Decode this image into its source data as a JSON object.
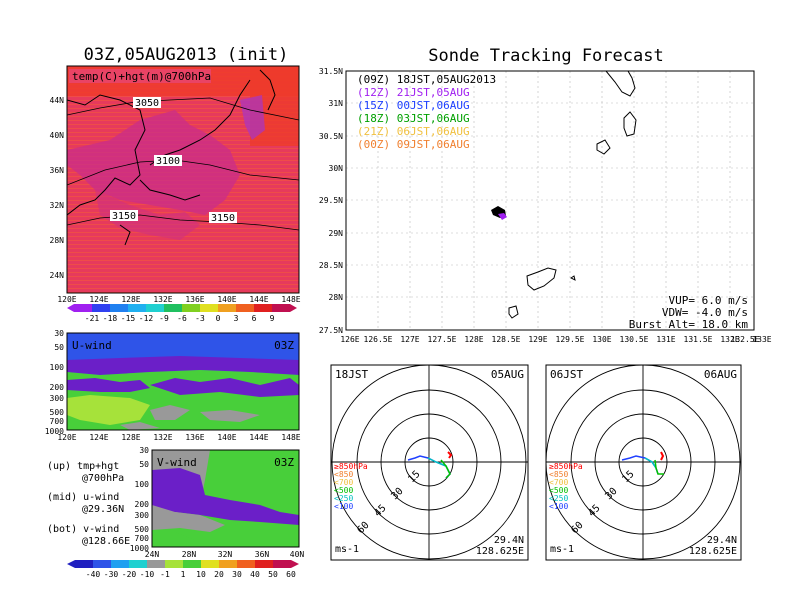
{
  "colors": {
    "temp_fill": "#e0365e",
    "temp_hot": "#ee3b2b",
    "temp_cool": "#a634c8",
    "u_top": "#2f54e8",
    "u_mid": "#6b1fc8",
    "u_low": "#48cf3a",
    "u_lime": "#a6e23a",
    "v_top": "#999999",
    "v_mid": "#6b1fc8",
    "v_low": "#48cf3a",
    "leg": [
      "#000000",
      "#a020f0",
      "#1e40ff",
      "#00a000",
      "#f0c040",
      "#f08030"
    ],
    "track_red": "#ff0000",
    "track_green": "#00c000",
    "track_blue": "#2040ff",
    "track_cyan": "#00c0c0"
  },
  "left": {
    "title": "03Z,05AUG2013 (init)",
    "map_label": "temp(C)+hgt(m)@700hPa",
    "lat_labels": [
      "44N",
      "40N",
      "36N",
      "32N",
      "28N",
      "24N"
    ],
    "lon_labels": [
      "120E",
      "124E",
      "128E",
      "132E",
      "136E",
      "140E",
      "144E",
      "148E"
    ],
    "contours": [
      "3050",
      "3100",
      "3150",
      "3150"
    ],
    "temp_cbar": [
      "-21",
      "-18",
      "-15",
      "-12",
      "-9",
      "-6",
      "-3",
      "0",
      "3",
      "6",
      "9"
    ],
    "u_label": "U-wind",
    "u_time": "03Z",
    "u_p_labels": [
      "30",
      "50",
      "100",
      "200",
      "300",
      "500",
      "700",
      "1000"
    ],
    "u_lon_labels": [
      "120E",
      "124E",
      "128E",
      "132E",
      "136E",
      "140E",
      "144E",
      "148E"
    ],
    "v_label": "V-wind",
    "v_time": "03Z",
    "v_p_labels": [
      "30",
      "50",
      "100",
      "200",
      "300",
      "500",
      "700",
      "1000"
    ],
    "v_lat_labels": [
      "24N",
      "28N",
      "32N",
      "36N",
      "40N"
    ],
    "notes": [
      {
        "a": "(up) tmp+hgt",
        "b": "@700hPa"
      },
      {
        "a": "(mid) u-wind",
        "b": "@29.36N"
      },
      {
        "a": "(bot) v-wind",
        "b": "@128.66E"
      }
    ],
    "wind_cbar": [
      "-40",
      "-30",
      "-20",
      "-10",
      "-1",
      "1",
      "10",
      "20",
      "30",
      "40",
      "50",
      "60"
    ]
  },
  "right": {
    "title": "Sonde Tracking Forecast",
    "lat_labels": [
      "31.5N",
      "31N",
      "30.5N",
      "30N",
      "29.5N",
      "29N",
      "28.5N",
      "28N",
      "27.5N"
    ],
    "lon_labels": [
      "126E",
      "126.5E",
      "127E",
      "127.5E",
      "128E",
      "128.5E",
      "129E",
      "129.5E",
      "130E",
      "130.5E",
      "131E",
      "131.5E",
      "132E",
      "132.5E",
      "133E"
    ],
    "legend": [
      "(09Z) 18JST,05AUG2013",
      "(12Z) 21JST,05AUG",
      "(15Z) 00JST,06AUG",
      "(18Z) 03JST,06AUG",
      "(21Z) 06JST,06AUG",
      "(00Z) 09JST,06AUG"
    ],
    "vup": "VUP= 6.0 m/s",
    "vdw": "VDW= -4.0 m/s",
    "burst": "Burst Alt= 18.0 km"
  },
  "polar": [
    {
      "time": "18JST",
      "date": "05AUG",
      "rings": [
        "15",
        "30",
        "45",
        "60"
      ],
      "levels": [
        "≥850hPa",
        "<850",
        "<700",
        "<500",
        "<250",
        "<100"
      ],
      "unit": "ms-1",
      "lat": "29.4N",
      "lon": "128.625E"
    },
    {
      "time": "06JST",
      "date": "06AUG",
      "rings": [
        "15",
        "30",
        "45",
        "60"
      ],
      "levels": [
        "≥850hPa",
        "<850",
        "<700",
        "<500",
        "<250",
        "<100"
      ],
      "unit": "ms-1",
      "lat": "29.4N",
      "lon": "128.625E"
    }
  ]
}
